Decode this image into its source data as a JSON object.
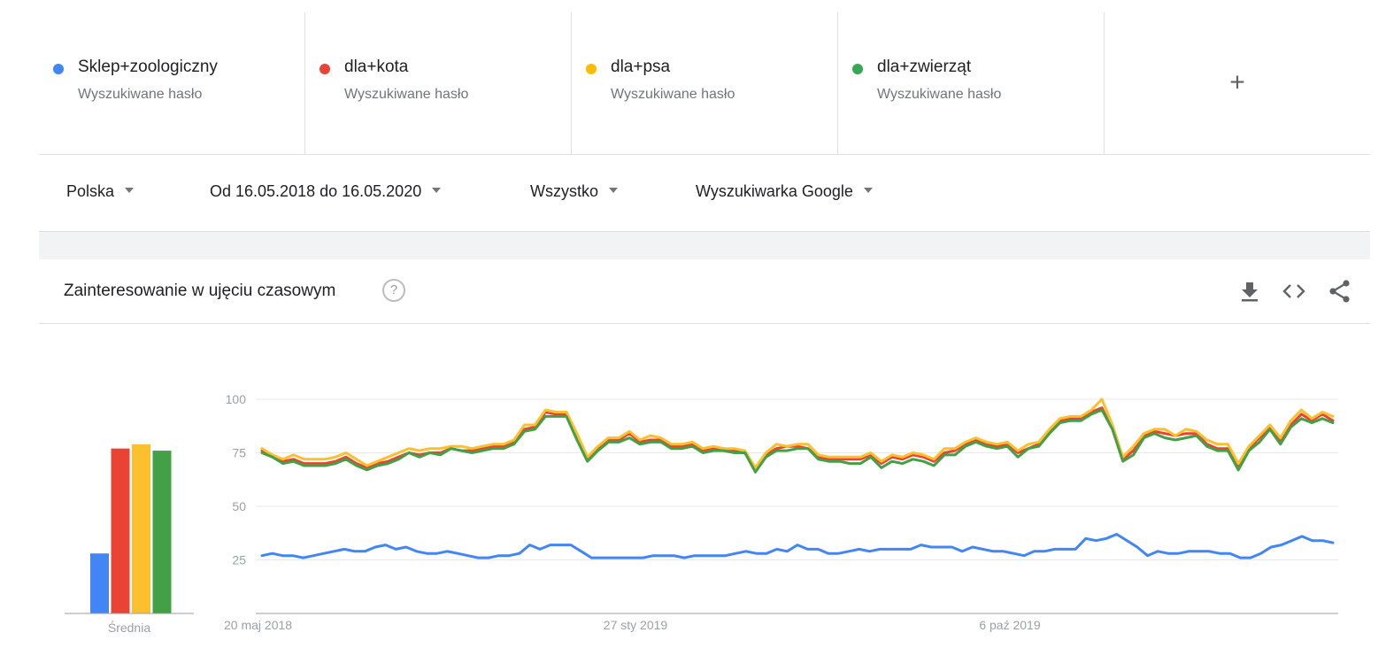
{
  "terms": [
    {
      "name": "Sklep+zoologiczny",
      "sub": "Wyszukiwane hasło",
      "color": "#4285f4"
    },
    {
      "name": "dla+kota",
      "sub": "Wyszukiwane hasło",
      "color": "#ea4335"
    },
    {
      "name": "dla+psa",
      "sub": "Wyszukiwane hasło",
      "color": "#fbbc04"
    },
    {
      "name": "dla+zwierząt",
      "sub": "Wyszukiwane hasło",
      "color": "#34a853"
    }
  ],
  "add_term_icon": "plus-icon",
  "filters": {
    "region": "Polska",
    "range": "Od 16.05.2018 do 16.05.2020",
    "category": "Wszystko",
    "property": "Wyszukiwarka Google"
  },
  "card": {
    "title": "Zainteresowanie w ujęciu czasowym",
    "help": "?",
    "icons": [
      "download-icon",
      "embed-icon",
      "share-icon"
    ]
  },
  "chart_data": [
    {
      "type": "bar",
      "xlabel": "Średnia",
      "series": [
        {
          "name": "Sklep+zoologiczny",
          "color": "#4285f4",
          "values": [
            28
          ]
        },
        {
          "name": "dla+kota",
          "color": "#ea4335",
          "values": [
            77
          ]
        },
        {
          "name": "dla+psa",
          "color": "#fbc02d",
          "values": [
            79
          ]
        },
        {
          "name": "dla+zwierząt",
          "color": "#43a047",
          "values": [
            76
          ]
        }
      ],
      "ylim": [
        0,
        100
      ]
    },
    {
      "type": "line",
      "x_tick_labels": [
        "20 maj 2018",
        "27 sty 2019",
        "6 paź 2019"
      ],
      "y_ticks": [
        25,
        50,
        75,
        100
      ],
      "ylim": [
        0,
        100
      ],
      "grid": true,
      "series": [
        {
          "name": "Sklep+zoologiczny",
          "color": "#4285f4",
          "values": [
            27,
            28,
            27,
            27,
            26,
            27,
            28,
            29,
            30,
            29,
            29,
            31,
            32,
            30,
            31,
            29,
            28,
            28,
            29,
            28,
            27,
            26,
            26,
            27,
            27,
            28,
            32,
            30,
            32,
            32,
            32,
            29,
            26,
            26,
            26,
            26,
            26,
            26,
            27,
            27,
            27,
            26,
            27,
            27,
            27,
            27,
            28,
            29,
            28,
            28,
            30,
            29,
            32,
            30,
            30,
            28,
            28,
            29,
            30,
            29,
            30,
            30,
            30,
            30,
            32,
            31,
            31,
            31,
            29,
            31,
            30,
            29,
            29,
            28,
            27,
            29,
            29,
            30,
            30,
            30,
            35,
            34,
            35,
            37,
            34,
            31,
            27,
            29,
            28,
            28,
            29,
            29,
            29,
            28,
            28,
            26,
            26,
            28,
            31,
            32,
            34,
            36,
            34,
            34,
            33
          ]
        },
        {
          "name": "dla+kota",
          "color": "#ea4335",
          "values": [
            76,
            73,
            71,
            72,
            70,
            70,
            70,
            71,
            73,
            70,
            68,
            70,
            71,
            73,
            75,
            74,
            75,
            75,
            77,
            76,
            76,
            77,
            78,
            78,
            80,
            86,
            87,
            94,
            93,
            93,
            82,
            72,
            77,
            81,
            81,
            84,
            80,
            81,
            81,
            78,
            78,
            79,
            76,
            77,
            76,
            76,
            75,
            68,
            74,
            77,
            78,
            78,
            77,
            73,
            72,
            72,
            72,
            72,
            74,
            70,
            73,
            72,
            74,
            73,
            71,
            75,
            76,
            79,
            81,
            79,
            78,
            79,
            75,
            77,
            79,
            85,
            90,
            91,
            91,
            94,
            96,
            86,
            72,
            76,
            83,
            85,
            84,
            83,
            84,
            84,
            79,
            77,
            77,
            69,
            77,
            82,
            87,
            80,
            88,
            93,
            90,
            93,
            90
          ]
        },
        {
          "name": "dla+psa",
          "color": "#fbc02d",
          "values": [
            77,
            74,
            72,
            74,
            72,
            72,
            72,
            73,
            75,
            72,
            69,
            71,
            73,
            75,
            77,
            76,
            77,
            77,
            78,
            78,
            77,
            78,
            79,
            79,
            81,
            88,
            88,
            95,
            94,
            94,
            84,
            73,
            78,
            82,
            82,
            85,
            81,
            83,
            82,
            79,
            79,
            80,
            77,
            78,
            77,
            77,
            76,
            68,
            75,
            79,
            78,
            79,
            79,
            74,
            73,
            73,
            73,
            73,
            75,
            71,
            74,
            73,
            75,
            74,
            72,
            77,
            77,
            80,
            82,
            80,
            79,
            80,
            76,
            79,
            80,
            86,
            91,
            92,
            92,
            95,
            100,
            88,
            73,
            78,
            84,
            86,
            86,
            83,
            86,
            85,
            81,
            79,
            79,
            70,
            78,
            83,
            88,
            82,
            90,
            95,
            91,
            94,
            92
          ]
        },
        {
          "name": "dla+zwierząt",
          "color": "#43a047",
          "values": [
            75,
            73,
            70,
            71,
            69,
            69,
            69,
            70,
            72,
            69,
            67,
            69,
            70,
            72,
            75,
            73,
            75,
            74,
            77,
            76,
            75,
            76,
            77,
            77,
            79,
            85,
            86,
            92,
            92,
            92,
            81,
            71,
            76,
            80,
            80,
            82,
            79,
            80,
            80,
            77,
            77,
            78,
            75,
            76,
            76,
            75,
            75,
            66,
            73,
            76,
            76,
            77,
            77,
            72,
            71,
            71,
            70,
            70,
            73,
            68,
            71,
            70,
            72,
            71,
            69,
            74,
            74,
            78,
            80,
            78,
            77,
            78,
            73,
            77,
            78,
            84,
            89,
            90,
            90,
            93,
            95,
            86,
            71,
            74,
            82,
            84,
            82,
            81,
            82,
            83,
            78,
            76,
            76,
            67,
            76,
            80,
            86,
            79,
            87,
            91,
            89,
            91,
            89
          ]
        }
      ]
    }
  ]
}
